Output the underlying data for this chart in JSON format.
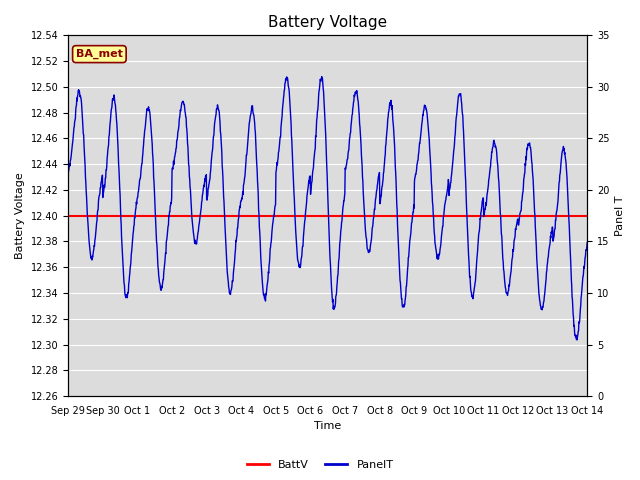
{
  "title": "Battery Voltage",
  "xlabel": "Time",
  "ylabel_left": "Battery Voltage",
  "ylabel_right": "Panel T",
  "ylim_left": [
    12.26,
    12.54
  ],
  "ylim_right": [
    0,
    35
  ],
  "yticks_left": [
    12.26,
    12.28,
    12.3,
    12.32,
    12.34,
    12.36,
    12.38,
    12.4,
    12.42,
    12.44,
    12.46,
    12.48,
    12.5,
    12.52,
    12.54
  ],
  "yticks_right": [
    0,
    5,
    10,
    15,
    20,
    25,
    30,
    35
  ],
  "xtick_labels": [
    "Sep 29",
    "Sep 30",
    "Oct 1",
    "Oct 2",
    "Oct 3",
    "Oct 4",
    "Oct 5",
    "Oct 6",
    "Oct 7",
    "Oct 8",
    "Oct 9",
    "Oct 10",
    "Oct 11",
    "Oct 12",
    "Oct 13",
    "Oct 14"
  ],
  "batt_v": 12.4,
  "batt_color": "#ff0000",
  "panel_color": "#0000cc",
  "background_color": "#dcdcdc",
  "grid_color": "#ffffff",
  "legend_label_batt": "BattV",
  "legend_label_panel": "PanelT",
  "annotation_text": "BA_met",
  "annotation_bg": "#ffff99",
  "annotation_border": "#8b0000",
  "n_days": 15,
  "peaks": [
    30,
    29.5,
    28.5,
    29,
    28.5,
    28.5,
    31.5,
    31.5,
    30,
    29,
    28.5,
    30,
    25,
    25,
    24.5
  ],
  "lows": [
    13,
    9,
    10,
    14.5,
    9.5,
    9,
    12,
    8,
    13.5,
    8,
    13,
    9,
    9.5,
    8,
    5
  ]
}
